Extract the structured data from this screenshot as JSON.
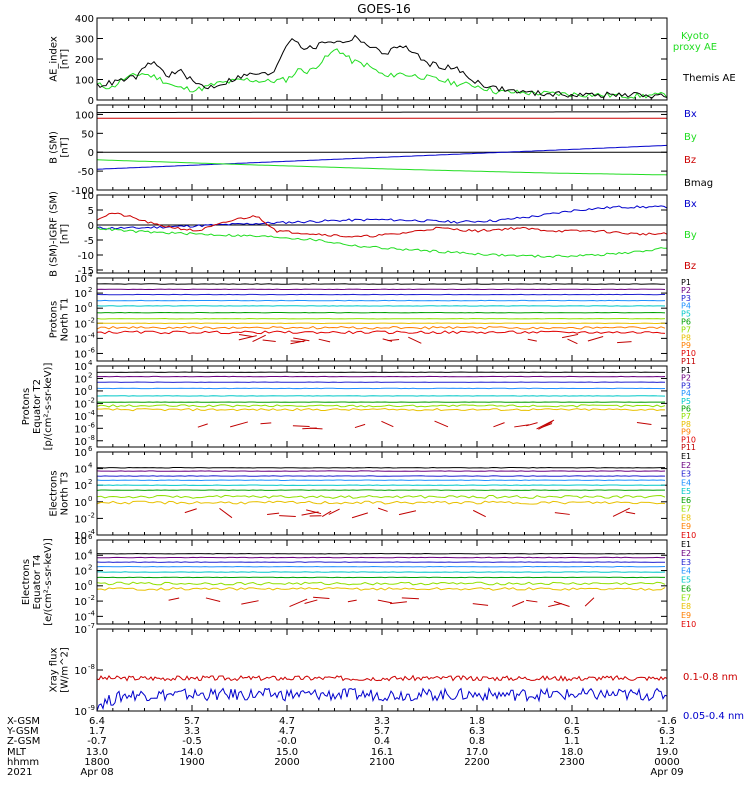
{
  "title": "GOES-16",
  "colors": {
    "black": "#000000",
    "green": "#22dd22",
    "red": "#cc0000",
    "blue": "#0000cc",
    "p": [
      "#000000",
      "#6b0080",
      "#2020d0",
      "#1e90ff",
      "#00c8c8",
      "#00a000",
      "#90e000",
      "#e8c000",
      "#ff7f00",
      "#e00000",
      "#c00000"
    ],
    "e": [
      "#000000",
      "#6b0080",
      "#2020d0",
      "#1e90ff",
      "#00c8c8",
      "#00a000",
      "#90e000",
      "#e8c000",
      "#ff7f00",
      "#e00000"
    ]
  },
  "chart_data": [
    {
      "type": "line",
      "id": "ae",
      "ylabel": [
        "AE_index",
        "[nT]"
      ],
      "ylim": [
        0,
        400
      ],
      "yticks": [
        "0",
        "100",
        "200",
        "300",
        "400"
      ],
      "legend": [
        {
          "text": "Kyoto",
          "color": "#22dd22"
        },
        {
          "text": "proxy AE",
          "color": "#22dd22"
        },
        {
          "text": "Themis AE",
          "color": "#000000"
        }
      ],
      "series": [
        {
          "name": "Kyoto proxy AE",
          "color": "#22dd22",
          "x": [
            0,
            15,
            25,
            45,
            60,
            80,
            100,
            120,
            150,
            170,
            190,
            205,
            210,
            225,
            240,
            255,
            270,
            290,
            300,
            330,
            360,
            380,
            400,
            460,
            500,
            540,
            570
          ],
          "y": [
            75,
            60,
            100,
            130,
            110,
            60,
            50,
            80,
            100,
            90,
            100,
            160,
            130,
            190,
            250,
            190,
            170,
            110,
            130,
            110,
            80,
            70,
            40,
            30,
            25,
            20,
            25
          ]
        },
        {
          "name": "Themis AE",
          "color": "#000000",
          "x": [
            0,
            20,
            40,
            55,
            70,
            85,
            95,
            110,
            125,
            140,
            160,
            175,
            185,
            195,
            205,
            215,
            230,
            245,
            260,
            275,
            290,
            305,
            330,
            360,
            375,
            395,
            430,
            480,
            540,
            570
          ],
          "y": [
            70,
            90,
            115,
            190,
            120,
            140,
            90,
            60,
            80,
            110,
            130,
            120,
            230,
            310,
            260,
            250,
            290,
            280,
            310,
            250,
            230,
            270,
            180,
            150,
            100,
            60,
            35,
            25,
            25,
            20
          ]
        }
      ]
    },
    {
      "type": "line",
      "id": "b-sm",
      "ylabel": [
        "B (SM)",
        "[nT]"
      ],
      "ylim": [
        -100,
        125
      ],
      "yticks": [
        "-100",
        "-50",
        "0",
        "50",
        "100"
      ],
      "series": [
        {
          "name": "Bx",
          "color": "#0000cc",
          "x": [
            0,
            570
          ],
          "y": [
            -45,
            18
          ]
        },
        {
          "name": "By",
          "color": "#22dd22",
          "x": [
            0,
            150,
            300,
            450,
            570
          ],
          "y": [
            -20,
            -33,
            -45,
            -55,
            -60
          ]
        },
        {
          "name": "Bz",
          "color": "#cc0000",
          "x": [
            0,
            570
          ],
          "y": [
            90,
            90
          ]
        },
        {
          "name": "Bmag",
          "color": "#000000",
          "x": [
            0,
            570
          ],
          "y": [
            105,
            107
          ]
        }
      ],
      "legend": [
        {
          "text": "Bx",
          "color": "#0000cc"
        },
        {
          "text": "By",
          "color": "#22dd22"
        },
        {
          "text": "Bz",
          "color": "#cc0000"
        },
        {
          "text": "Bmag",
          "color": "#000000"
        }
      ]
    },
    {
      "type": "line",
      "id": "b-igrf",
      "ylabel": [
        "B (SM)-IGRF (SM)",
        "[nT]"
      ],
      "ylim": [
        -16,
        10
      ],
      "yticks": [
        "-15",
        "-10",
        "-5",
        "0",
        "5",
        "10"
      ],
      "series": [
        {
          "name": "Bx",
          "color": "#0000cc",
          "x": [
            0,
            40,
            80,
            120,
            160,
            200,
            240,
            280,
            320,
            360,
            400,
            440,
            480,
            520,
            570
          ],
          "y": [
            -1,
            -1,
            -0.5,
            0,
            0.5,
            1,
            1.5,
            1.8,
            1.5,
            1,
            1.5,
            3,
            5,
            6,
            6
          ]
        },
        {
          "name": "By",
          "color": "#22dd22",
          "x": [
            0,
            30,
            60,
            100,
            140,
            180,
            220,
            260,
            300,
            350,
            400,
            450,
            500,
            540,
            570
          ],
          "y": [
            -1,
            -2,
            -2.5,
            -3,
            -3.5,
            -4,
            -5,
            -7,
            -8,
            -9,
            -10,
            -10.5,
            -10,
            -9,
            -7.5
          ]
        },
        {
          "name": "Bz",
          "color": "#cc0000",
          "x": [
            0,
            15,
            30,
            60,
            100,
            140,
            160,
            180,
            220,
            260,
            300,
            340,
            380,
            420,
            460,
            500,
            540,
            570
          ],
          "y": [
            2,
            4,
            3,
            0,
            -2,
            2,
            3,
            -2,
            -3,
            -4,
            -3,
            -1,
            -2,
            -1,
            -2,
            -2,
            -3,
            -3
          ]
        }
      ],
      "legend": [
        {
          "text": "Bx",
          "color": "#0000cc"
        },
        {
          "text": "By",
          "color": "#22dd22"
        },
        {
          "text": "Bz",
          "color": "#cc0000"
        }
      ]
    },
    {
      "type": "line",
      "id": "protons-t1",
      "scale": "log",
      "ylabel": [
        "Protons",
        "North T1"
      ],
      "ylim": [
        -7,
        4
      ],
      "ytick_exponents": [
        4,
        2,
        0,
        -2,
        -4,
        -6
      ],
      "levels": [
        3.2,
        2.5,
        1.8,
        1.0,
        0.3,
        -0.6,
        -1.4,
        -2.0,
        -2.6,
        -3.2
      ],
      "legend": [
        "P1",
        "P2",
        "P3",
        "P4",
        "P5",
        "P6",
        "P7",
        "P8",
        "P9",
        "P10",
        "P11"
      ]
    },
    {
      "type": "line",
      "id": "protons-t2",
      "scale": "log",
      "ylabel": [
        "Protons",
        "Equator T2",
        "[p/(cm²-s-sr-keV)]"
      ],
      "ylim": [
        -9,
        4
      ],
      "ytick_exponents": [
        4,
        2,
        0,
        -2,
        -4,
        -6,
        -8
      ],
      "levels": [
        3.0,
        2.3,
        1.4,
        0.4,
        -0.8,
        -1.8,
        -2.4,
        -3.0
      ],
      "legend": [
        "P1",
        "P2",
        "P3",
        "P4",
        "P5",
        "P6",
        "P7",
        "P8",
        "P9",
        "P10",
        "P11"
      ]
    },
    {
      "type": "line",
      "id": "electrons-t3",
      "scale": "log",
      "ylabel": [
        "Electrons",
        "North T3"
      ],
      "ylim": [
        -4,
        6
      ],
      "ytick_exponents": [
        6,
        4,
        2,
        0,
        -2,
        -4
      ],
      "levels": [
        4.1,
        3.7,
        3.1,
        2.6,
        2.0,
        1.4,
        0.6,
        -0.1
      ],
      "legend": [
        "E1",
        "E2",
        "E3",
        "E4",
        "E5",
        "E6",
        "E7",
        "E8",
        "E9",
        "E10"
      ]
    },
    {
      "type": "line",
      "id": "electrons-t4",
      "scale": "log",
      "ylabel": [
        "Electrons",
        "Equator T4",
        "[e/(cm²-s-sr-keV)]"
      ],
      "ylim": [
        -5,
        6
      ],
      "ytick_exponents": [
        6,
        4,
        2,
        0,
        -2,
        -4
      ],
      "levels": [
        4.2,
        3.7,
        3.1,
        2.5,
        1.8,
        1.1,
        0.3,
        -0.4
      ],
      "legend": [
        "E1",
        "E2",
        "E3",
        "E4",
        "E5",
        "E6",
        "E7",
        "E8",
        "E9",
        "E10"
      ]
    },
    {
      "type": "line",
      "id": "xray",
      "scale": "log",
      "ylabel": [
        "Xray flux",
        "[W/m^2]"
      ],
      "ylim": [
        -9,
        -7
      ],
      "ytick_exponents": [
        -7,
        -8,
        -9
      ],
      "series": [
        {
          "name": "0.1-0.8 nm",
          "color": "#cc0000",
          "level": -8.2
        },
        {
          "name": "0.05-0.4 nm",
          "color": "#0000cc",
          "level": -8.6
        }
      ],
      "legend": [
        {
          "text": "0.1-0.8 nm",
          "color": "#cc0000"
        },
        {
          "text": "0.05-0.4 nm",
          "color": "#0000cc"
        }
      ]
    }
  ],
  "axis_table": {
    "labels": [
      "X-GSM",
      "Y-GSM",
      "Z-GSM",
      "MLT",
      "hhmm",
      "2021"
    ],
    "columns": [
      [
        "6.4",
        "1.7",
        "-0.7",
        "13.0",
        "1800",
        "Apr 08"
      ],
      [
        "5.7",
        "3.3",
        "-0.5",
        "14.0",
        "1900",
        ""
      ],
      [
        "4.7",
        "4.7",
        "-0.0",
        "15.0",
        "2000",
        ""
      ],
      [
        "3.3",
        "5.7",
        "0.4",
        "16.1",
        "2100",
        ""
      ],
      [
        "1.8",
        "6.3",
        "0.8",
        "17.0",
        "2200",
        ""
      ],
      [
        "0.1",
        "6.5",
        "1.1",
        "18.0",
        "2300",
        ""
      ],
      [
        "-1.6",
        "6.3",
        "1.2",
        "19.0",
        "0000",
        "Apr 09"
      ]
    ]
  }
}
